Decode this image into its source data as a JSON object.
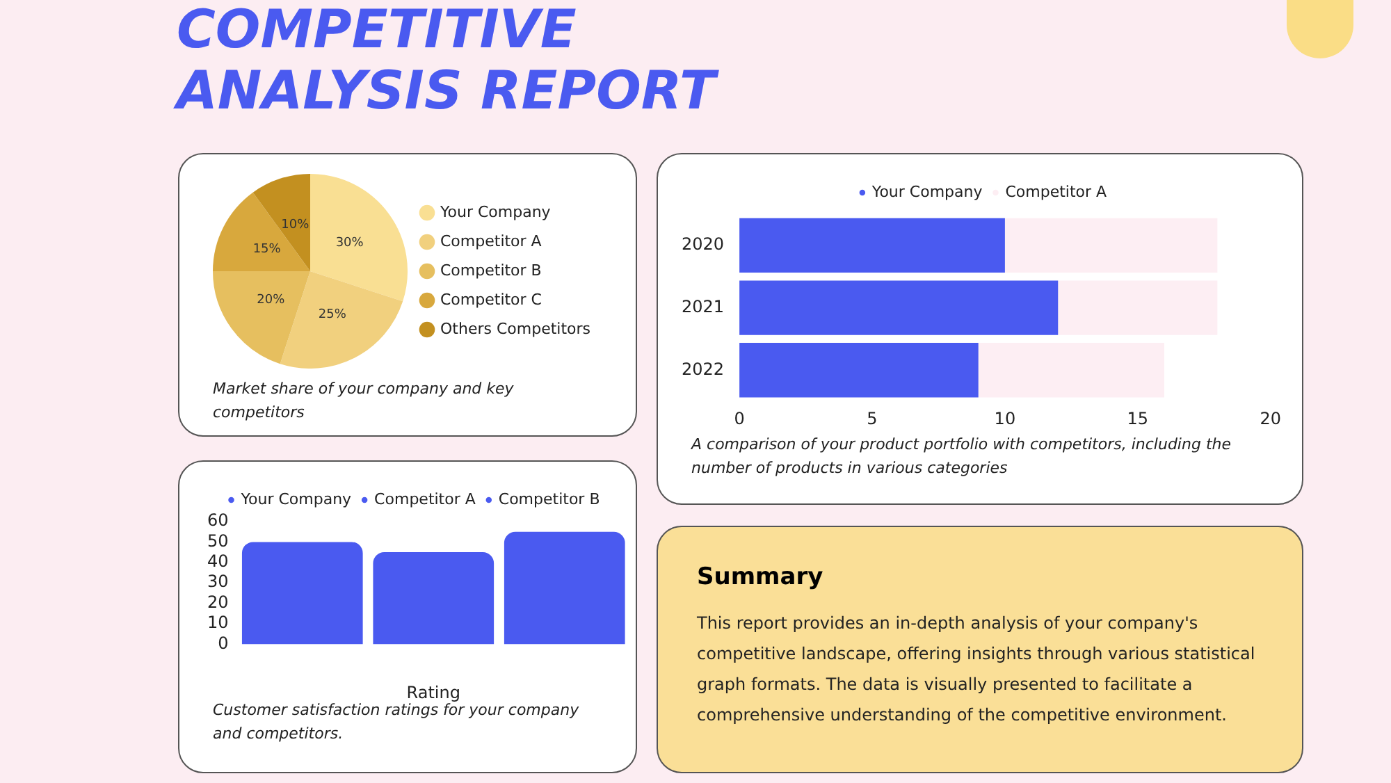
{
  "chart_data": [
    {
      "type": "pie",
      "title": "COMPETITIVE ANALYSIS REPORT",
      "categories": [
        "Your Company",
        "Competitor A",
        "Competitor B",
        "Competitor C",
        "Others Competitors"
      ],
      "values": [
        30,
        25,
        20,
        15,
        10
      ],
      "value_labels": [
        "30%",
        "25%",
        "20%",
        "15%",
        "10%"
      ],
      "colors": [
        "#f9df93",
        "#f1d07e",
        "#e6bf5f",
        "#d8a83d",
        "#c39020"
      ],
      "legend": "right",
      "annotations": [
        "Market share of your company and key competitors"
      ]
    },
    {
      "type": "bar",
      "orientation": "horizontal",
      "stacked": true,
      "categories": [
        "2020",
        "2021",
        "2022"
      ],
      "series": [
        {
          "name": "Your Company",
          "color": "#4a5af0",
          "values": [
            10,
            12,
            9
          ]
        },
        {
          "name": "Competitor A",
          "color": "#fdeef3",
          "values": [
            8,
            6,
            7
          ]
        }
      ],
      "xlim": [
        0,
        20
      ],
      "xticks": [
        0,
        5,
        10,
        15,
        20
      ],
      "legend": "top",
      "annotations": [
        "A comparison of your product portfolio with competitors, including the number of products in various categories"
      ]
    },
    {
      "type": "bar",
      "stacked": true,
      "xlabel": "Rating",
      "categories": [
        null,
        null,
        null
      ],
      "series": [
        {
          "name": "Your Company",
          "color": "#4a5af0",
          "values": [
            50,
            null,
            null
          ]
        },
        {
          "name": "Competitor A",
          "color": "#4a5af0",
          "values": [
            null,
            45,
            null
          ]
        },
        {
          "name": "Competitor B",
          "color": "#4a5af0",
          "values": [
            null,
            null,
            55
          ]
        }
      ],
      "ylim": [
        0,
        60
      ],
      "yticks": [
        0,
        10,
        20,
        30,
        40,
        50,
        60
      ],
      "legend": "top",
      "annotations": [
        "Customer satisfaction ratings for your company and competitors."
      ]
    },
    {
      "type": "other",
      "title": "Summary",
      "annotations": [
        "This report provides an in-depth analysis of your company's competitive landscape, offering insights through various statistical graph formats. The data is visually presented to facilitate a comprehensive understanding of the competitive environment."
      ]
    }
  ]
}
